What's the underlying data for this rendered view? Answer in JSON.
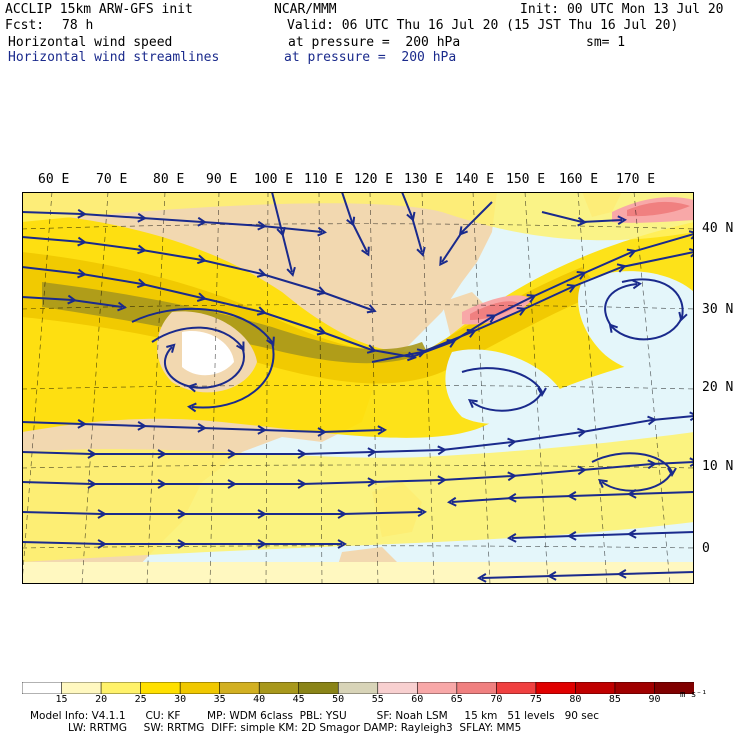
{
  "header": {
    "title_left": "ACCLIP 15km ARW-GFS init",
    "title_center": "NCAR/MMM",
    "init": "Init: 00 UTC Mon 13 Jul 20",
    "fcst_label": "Fcst:",
    "fcst_value": "78 h",
    "valid": "Valid: 06 UTC Thu 16 Jul 20 (15 JST Thu 16 Jul 20)",
    "field1": "Horizontal wind speed",
    "field1_level": "at pressure =  200 hPa",
    "smoothing": "sm= 1",
    "field2": "Horizontal wind streamlines",
    "field2_level": "at pressure =  200 hPa"
  },
  "map": {
    "lon_labels": [
      "60 E",
      "70 E",
      "80 E",
      "90 E",
      "100 E",
      "110 E",
      "120 E",
      "130 E",
      "140 E",
      "150 E",
      "160 E",
      "170 E"
    ],
    "lat_labels": [
      "40 N",
      "30 N",
      "20 N",
      "10 N",
      "0"
    ]
  },
  "colorbar": {
    "levels": [
      "15",
      "20",
      "25",
      "30",
      "35",
      "40",
      "45",
      "50",
      "55",
      "60",
      "65",
      "70",
      "75",
      "80",
      "85",
      "90"
    ],
    "unit": "m s⁻¹",
    "colors": [
      "#ffffff",
      "#fff8c0",
      "#fff26a",
      "#ffe000",
      "#f0c800",
      "#d2b022",
      "#a8981c",
      "#8a8418",
      "#d8d4b8",
      "#f8d0d0",
      "#f8a8a8",
      "#f08080",
      "#f04040",
      "#e00000",
      "#c00000",
      "#a00000",
      "#800000"
    ]
  },
  "model_info": {
    "line1": "Model Info: V4.1.1      CU: KF        MP: WDM 6class  PBL: YSU         SF: Noah LSM     15 km   51 levels   90 sec",
    "line2": "LW: RRTMG     SW: RRTMG  DIFF: simple KM: 2D Smagor DAMP: Rayleigh3  SFLAY: MM5"
  },
  "colors": {
    "streamline": "#1a2a8c",
    "land": "#f2d8b0",
    "ocean": "#e4f6fa"
  }
}
